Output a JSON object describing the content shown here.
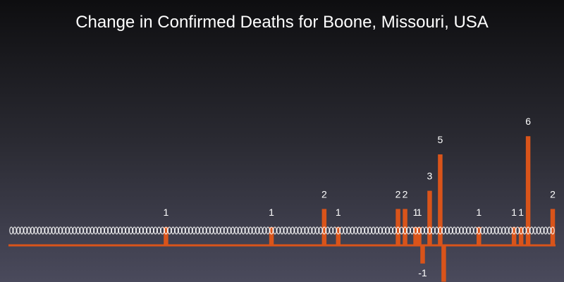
{
  "chart_data": {
    "type": "bar",
    "title": "Change in Confirmed Deaths for Boone, Missouri, USA",
    "xlabel": "",
    "ylabel": "",
    "ylim": [
      -2,
      6
    ],
    "grid": false,
    "legend": "none",
    "bar_color": "#d9541a",
    "marker_color": "#ffffff",
    "categories_count": 155,
    "nonzero": [
      {
        "index": 44,
        "value": 1
      },
      {
        "index": 74,
        "value": 1
      },
      {
        "index": 89,
        "value": 2
      },
      {
        "index": 93,
        "value": 1
      },
      {
        "index": 110,
        "value": 2
      },
      {
        "index": 112,
        "value": 2
      },
      {
        "index": 115,
        "value": 1
      },
      {
        "index": 116,
        "value": 1
      },
      {
        "index": 117,
        "value": -1
      },
      {
        "index": 119,
        "value": 3
      },
      {
        "index": 122,
        "value": 5
      },
      {
        "index": 123,
        "value": -2
      },
      {
        "index": 133,
        "value": 1
      },
      {
        "index": 143,
        "value": 1
      },
      {
        "index": 145,
        "value": 1
      },
      {
        "index": 147,
        "value": 6
      },
      {
        "index": 154,
        "value": 2
      }
    ],
    "data_labels": [
      {
        "index": 44,
        "text": "1"
      },
      {
        "index": 74,
        "text": "1"
      },
      {
        "index": 89,
        "text": "2"
      },
      {
        "index": 93,
        "text": "1"
      },
      {
        "index": 110,
        "text": "2"
      },
      {
        "index": 112,
        "text": "2"
      },
      {
        "index": 115,
        "text": "1"
      },
      {
        "index": 116,
        "text": "1"
      },
      {
        "index": 117,
        "text": "-1"
      },
      {
        "index": 119,
        "text": "3"
      },
      {
        "index": 122,
        "text": "5"
      },
      {
        "index": 133,
        "text": "1"
      },
      {
        "index": 143,
        "text": "1"
      },
      {
        "index": 145,
        "text": "1"
      },
      {
        "index": 147,
        "text": "6"
      },
      {
        "index": 154,
        "text": "2"
      }
    ]
  }
}
